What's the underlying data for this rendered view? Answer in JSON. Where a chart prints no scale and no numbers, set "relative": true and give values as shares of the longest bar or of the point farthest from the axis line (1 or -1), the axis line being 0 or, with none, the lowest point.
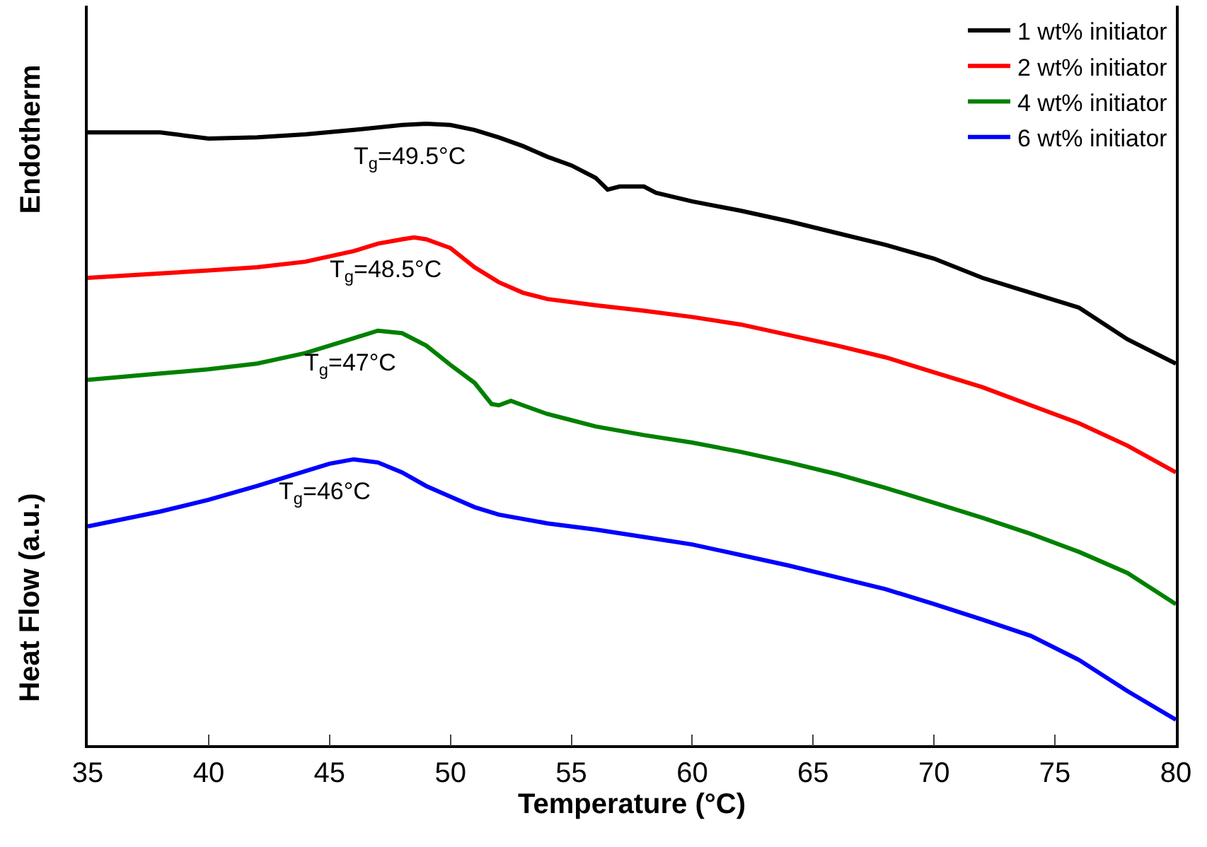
{
  "chart_data": {
    "type": "line",
    "relative": true,
    "xlabel": "Temperature (°C)",
    "ylabel": "Heat Flow (a.u.)",
    "xlim": [
      35,
      80
    ],
    "xticks": [
      35,
      40,
      45,
      50,
      55,
      60,
      65,
      70,
      75,
      80
    ],
    "legend": "top right",
    "marker": "none",
    "line_style": "solid",
    "annotations": [
      "Endotherm",
      {
        "text": "T$_{g}$=49.5°C",
        "x": 49.5,
        "y": 1.0
      },
      {
        "text": "T$_{g}$=48.5°C",
        "x": 48.5,
        "y": 0.817
      },
      {
        "text": "T$_{g}$=47°C",
        "x": 47,
        "y": 0.667
      },
      {
        "text": "T$_{g}$=46°C",
        "x": 46,
        "y": 0.46
      }
    ],
    "series": [
      {
        "name": "1 wt% initiator",
        "color": "#000000",
        "x": [
          35,
          36,
          37,
          38,
          39,
          40,
          42,
          44,
          46,
          48,
          49,
          50,
          51,
          52,
          53,
          54,
          55,
          56,
          56.5,
          57,
          58,
          58.5,
          60,
          62,
          64,
          66,
          68,
          70,
          72,
          74,
          76,
          78,
          80
        ],
        "values": [
          0.986,
          0.986,
          0.986,
          0.986,
          0.981,
          0.976,
          0.978,
          0.983,
          0.99,
          0.998,
          1.0,
          0.998,
          0.99,
          0.978,
          0.964,
          0.947,
          0.933,
          0.913,
          0.894,
          0.899,
          0.899,
          0.889,
          0.875,
          0.86,
          0.843,
          0.824,
          0.805,
          0.783,
          0.752,
          0.728,
          0.704,
          0.653,
          0.614
        ]
      },
      {
        "name": "2 wt% initiator",
        "color": "#ff0000",
        "x": [
          35,
          38,
          40,
          42,
          44,
          46,
          47,
          48,
          48.5,
          49,
          50,
          51,
          52,
          53,
          54,
          56,
          58,
          60,
          62,
          64,
          66,
          68,
          70,
          72,
          74,
          76,
          78,
          80
        ],
        "values": [
          0.752,
          0.759,
          0.764,
          0.769,
          0.778,
          0.795,
          0.807,
          0.814,
          0.817,
          0.814,
          0.8,
          0.769,
          0.745,
          0.728,
          0.718,
          0.708,
          0.699,
          0.689,
          0.677,
          0.66,
          0.643,
          0.624,
          0.6,
          0.576,
          0.547,
          0.518,
          0.482,
          0.439
        ]
      },
      {
        "name": "4 wt% initiator",
        "color": "#008000",
        "x": [
          35,
          38,
          40,
          42,
          44,
          46,
          47,
          48,
          49,
          50,
          51,
          51.7,
          52,
          52.5,
          53,
          54,
          55,
          56,
          58,
          60,
          62,
          64,
          66,
          68,
          70,
          72,
          74,
          76,
          78,
          80
        ],
        "values": [
          0.588,
          0.598,
          0.605,
          0.614,
          0.631,
          0.655,
          0.667,
          0.663,
          0.643,
          0.612,
          0.583,
          0.549,
          0.547,
          0.554,
          0.547,
          0.533,
          0.523,
          0.513,
          0.499,
          0.487,
          0.472,
          0.455,
          0.436,
          0.414,
          0.39,
          0.366,
          0.34,
          0.311,
          0.277,
          0.227
        ]
      },
      {
        "name": "6 wt% initiator",
        "color": "#0000ff",
        "x": [
          35,
          38,
          40,
          42,
          44,
          45,
          46,
          47,
          48,
          49,
          50,
          51,
          52,
          54,
          56,
          58,
          60,
          62,
          64,
          66,
          68,
          70,
          72,
          74,
          76,
          78,
          80
        ],
        "values": [
          0.352,
          0.376,
          0.395,
          0.417,
          0.441,
          0.453,
          0.46,
          0.455,
          0.439,
          0.417,
          0.4,
          0.383,
          0.371,
          0.357,
          0.347,
          0.335,
          0.323,
          0.306,
          0.289,
          0.27,
          0.251,
          0.227,
          0.202,
          0.176,
          0.137,
          0.087,
          0.041
        ]
      }
    ]
  }
}
